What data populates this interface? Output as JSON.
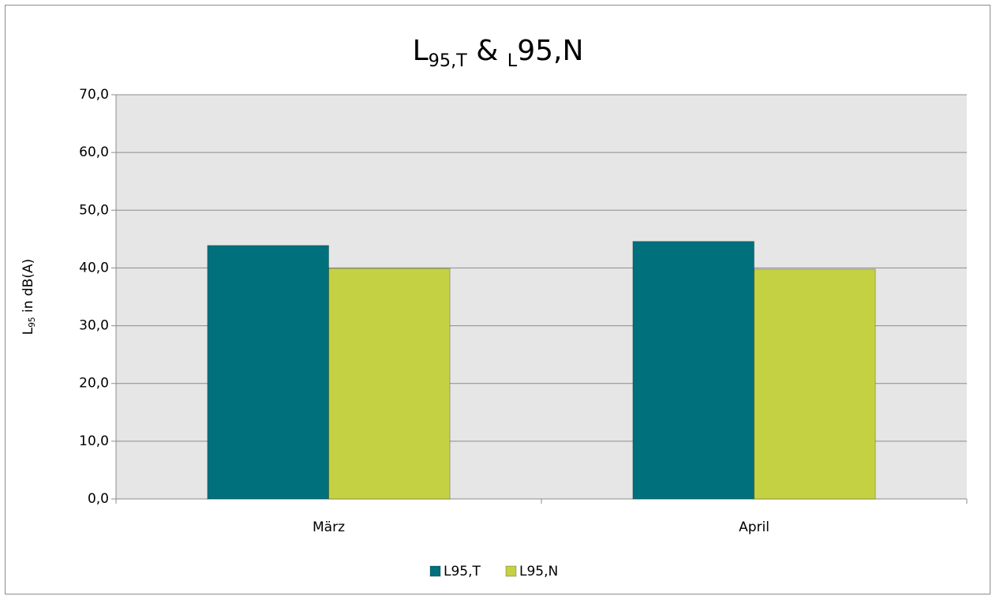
{
  "chart_data": {
    "type": "bar",
    "title": [
      "L",
      "95,T",
      " & ",
      "L",
      "95,N"
    ],
    "ylabel": [
      "L",
      "95",
      " in dB(A)"
    ],
    "categories": [
      "März",
      "April"
    ],
    "series": [
      {
        "name": "L95,T",
        "color": "#00707d",
        "values": [
          43.9,
          44.6
        ]
      },
      {
        "name": "L95,N",
        "color": "#c4d142",
        "values": [
          39.9,
          39.8
        ]
      }
    ],
    "ylim": [
      0,
      70
    ],
    "yticks": [
      {
        "value": 0,
        "label": "0,0"
      },
      {
        "value": 10,
        "label": "10,0"
      },
      {
        "value": 20,
        "label": "20,0"
      },
      {
        "value": 30,
        "label": "30,0"
      },
      {
        "value": 40,
        "label": "40,0"
      },
      {
        "value": 50,
        "label": "50,0"
      },
      {
        "value": 60,
        "label": "60,0"
      },
      {
        "value": 70,
        "label": "70,0"
      }
    ],
    "grid": true,
    "legend": "bottom"
  }
}
